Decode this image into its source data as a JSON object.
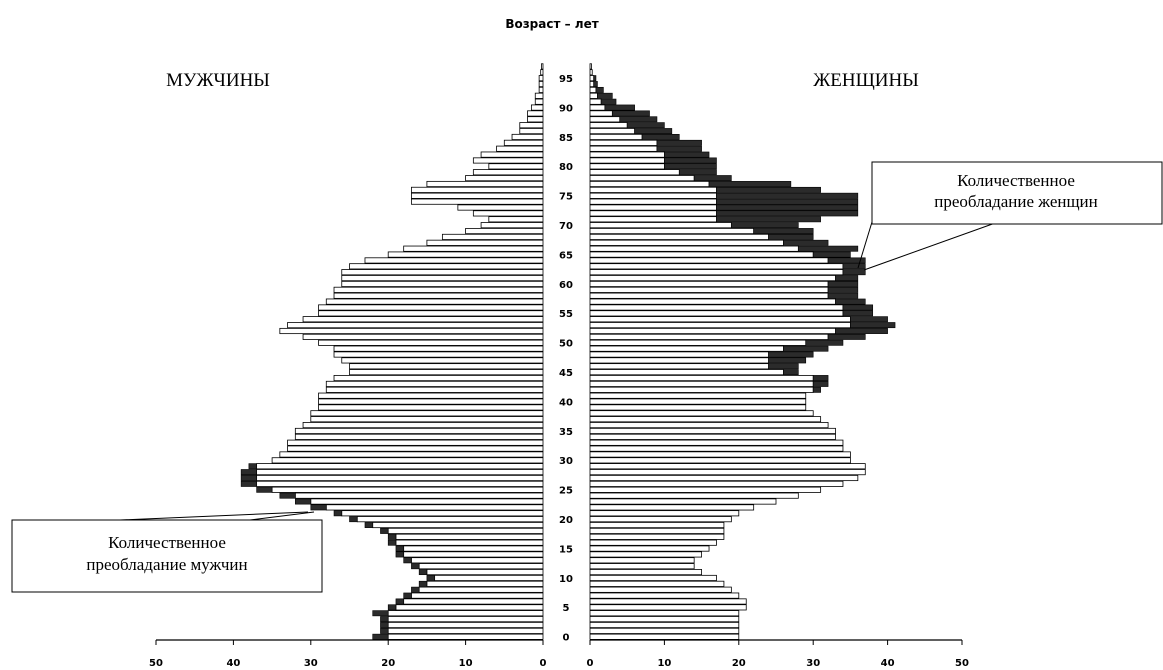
{
  "chart_data": {
    "type": "population-pyramid",
    "title": "Возраст – лет",
    "left_label": "МУЖЧИНЫ",
    "right_label": "ЖЕНЩИНЫ",
    "annotation_women": [
      "Количественное",
      "преобладание женщин"
    ],
    "annotation_men": [
      "Количественное",
      "преобладание мужчин"
    ],
    "x_ticks_left": [
      50,
      40,
      30,
      20,
      10,
      0
    ],
    "x_ticks_right": [
      0,
      10,
      20,
      30,
      40,
      50
    ],
    "xlim": [
      0,
      50
    ],
    "age_ticks": [
      0,
      5,
      10,
      15,
      20,
      25,
      30,
      35,
      40,
      45,
      50,
      55,
      60,
      65,
      70,
      75,
      80,
      85,
      90,
      95
    ],
    "ages": [
      0,
      1,
      2,
      3,
      4,
      5,
      6,
      7,
      8,
      9,
      10,
      11,
      12,
      13,
      14,
      15,
      16,
      17,
      18,
      19,
      20,
      21,
      22,
      23,
      24,
      25,
      26,
      27,
      28,
      29,
      30,
      31,
      32,
      33,
      34,
      35,
      36,
      37,
      38,
      39,
      40,
      41,
      42,
      43,
      44,
      45,
      46,
      47,
      48,
      49,
      50,
      51,
      52,
      53,
      54,
      55,
      56,
      57,
      58,
      59,
      60,
      61,
      62,
      63,
      64,
      65,
      66,
      67,
      68,
      69,
      70,
      71,
      72,
      73,
      74,
      75,
      76,
      77,
      78,
      79,
      80,
      81,
      82,
      83,
      84,
      85,
      86,
      87,
      88,
      89,
      90,
      91,
      92,
      93,
      94,
      95,
      96,
      97
    ],
    "series": [
      {
        "name": "МУЖЧИНЫ",
        "values": [
          20,
          20,
          20,
          20,
          20,
          19,
          18,
          17,
          16,
          15,
          14,
          15,
          16,
          17,
          18,
          18,
          19,
          19,
          20,
          22,
          24,
          26,
          28,
          30,
          32,
          35,
          37,
          37,
          37,
          37,
          35,
          34,
          33,
          33,
          32,
          32,
          31,
          30,
          30,
          29,
          29,
          29,
          28,
          28,
          27,
          25,
          25,
          26,
          27,
          27,
          29,
          31,
          34,
          33,
          31,
          29,
          29,
          28,
          27,
          27,
          26,
          26,
          26,
          25,
          23,
          20,
          18,
          15,
          13,
          10,
          8,
          7,
          9,
          11,
          17,
          17,
          17,
          15,
          10,
          9,
          7,
          9,
          8,
          6,
          5,
          4,
          3,
          3,
          2,
          2,
          1.5,
          1,
          1,
          0.5,
          0.5,
          0.5,
          0.3,
          0.2
        ]
      },
      {
        "name": "ЖЕНЩИНЫ",
        "values": [
          20,
          20,
          20,
          20,
          20,
          21,
          21,
          20,
          19,
          18,
          17,
          15,
          14,
          14,
          15,
          16,
          17,
          18,
          18,
          18,
          19,
          20,
          22,
          25,
          28,
          31,
          34,
          36,
          37,
          37,
          35,
          35,
          34,
          34,
          33,
          33,
          32,
          31,
          30,
          29,
          29,
          29,
          30,
          30,
          30,
          26,
          24,
          24,
          24,
          26,
          29,
          32,
          33,
          35,
          35,
          34,
          34,
          33,
          32,
          32,
          32,
          33,
          34,
          34,
          32,
          30,
          28,
          26,
          24,
          22,
          19,
          17,
          17,
          17,
          17,
          17,
          17,
          16,
          14,
          12,
          10,
          10,
          10,
          9,
          9,
          7,
          6,
          5,
          4,
          3,
          2,
          1.5,
          1,
          0.8,
          0.5,
          0.5,
          0.3,
          0.2
        ]
      },
      {
        "name": "Количественное преобладание женщин",
        "values": [
          0,
          0,
          0,
          0,
          0,
          0,
          0,
          0,
          0,
          0,
          0,
          0,
          0,
          0,
          0,
          0,
          0,
          0,
          0,
          0,
          0,
          0,
          0,
          0,
          0,
          0,
          0,
          0,
          0,
          0,
          0,
          0,
          0,
          0,
          0,
          0,
          0,
          0,
          0,
          0,
          0,
          0,
          1,
          2,
          2,
          2,
          4,
          5,
          6,
          6,
          5,
          5,
          7,
          6,
          5,
          4,
          4,
          4,
          4,
          4,
          4,
          3,
          3,
          3,
          5,
          5,
          8,
          6,
          6,
          8,
          9,
          14,
          19,
          19,
          19,
          19,
          14,
          11,
          5,
          5,
          7,
          7,
          6,
          6,
          6,
          5,
          5,
          5,
          5,
          5,
          4,
          2,
          2,
          1,
          0.5,
          0.3,
          0,
          0
        ]
      },
      {
        "name": "Количественное преобладание мужчин",
        "values": [
          2,
          1,
          1,
          1,
          2,
          1,
          1,
          1,
          1,
          1,
          1,
          1,
          1,
          1,
          1,
          1,
          1,
          1,
          1,
          1,
          1,
          1,
          2,
          2,
          2,
          2,
          2,
          2,
          2,
          1,
          0,
          0,
          0,
          0,
          0,
          0,
          0,
          0,
          0,
          0,
          0,
          0,
          0,
          0,
          0,
          0,
          0,
          0,
          0,
          0,
          0,
          0,
          0,
          0,
          0,
          0,
          0,
          0,
          0,
          0,
          0,
          0,
          0,
          0,
          0,
          0,
          0,
          0,
          0,
          0,
          0,
          0,
          0,
          0,
          0,
          0,
          0,
          0,
          0,
          0,
          0,
          0,
          0,
          0,
          0,
          0,
          0,
          0,
          0,
          0,
          0,
          0,
          0,
          0,
          0,
          0,
          0,
          0
        ]
      }
    ],
    "colors": {
      "bar": "#ffffff",
      "outline": "#000000",
      "excess": "#2b2b2b"
    }
  }
}
